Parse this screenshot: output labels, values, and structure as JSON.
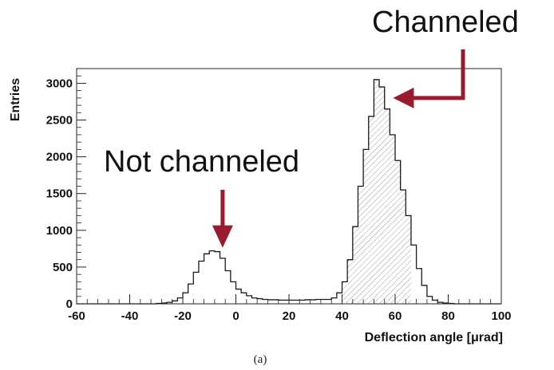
{
  "chart_data": {
    "type": "histogram",
    "xlabel": "Deflection angle   [μrad]",
    "ylabel": "Entries",
    "caption": "(a)",
    "xlim": [
      -60,
      100
    ],
    "ylim": [
      0,
      3200
    ],
    "x_ticks": [
      -60,
      -40,
      -20,
      0,
      20,
      40,
      60,
      80,
      100
    ],
    "y_ticks": [
      0,
      500,
      1000,
      1500,
      2000,
      2500,
      3000
    ],
    "grid": false,
    "bin_width": 2,
    "bins_from": -60,
    "counts": [
      0,
      0,
      0,
      0,
      0,
      0,
      0,
      0,
      0,
      0,
      0,
      0,
      0,
      0,
      0,
      5,
      10,
      20,
      40,
      80,
      150,
      270,
      430,
      580,
      680,
      720,
      710,
      620,
      450,
      300,
      200,
      150,
      110,
      80,
      70,
      60,
      55,
      55,
      50,
      50,
      50,
      50,
      50,
      55,
      55,
      60,
      60,
      60,
      80,
      150,
      300,
      600,
      1050,
      1600,
      2100,
      2550,
      3050,
      2950,
      2650,
      2300,
      1950,
      1550,
      1200,
      800,
      480,
      250,
      100,
      50,
      20,
      10,
      5,
      0,
      0,
      0,
      0,
      0,
      0,
      0,
      0,
      0
    ],
    "hatched_range": [
      40,
      66
    ],
    "annotations": [
      {
        "text": "Channeled",
        "target": [
          49,
          2800
        ]
      },
      {
        "text": "Not channeled",
        "target": [
          -5,
          720
        ]
      }
    ],
    "colors": {
      "histogram": "#1a1a1a",
      "hatch": "#9a9a9a",
      "arrow": "#9a1b2e"
    }
  }
}
